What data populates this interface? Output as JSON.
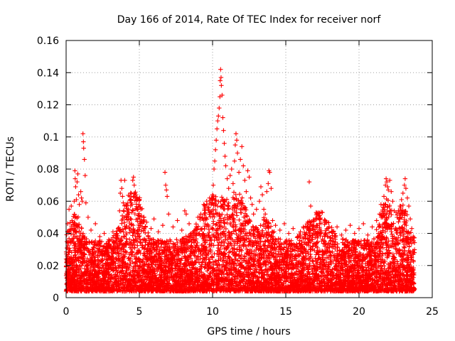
{
  "chart_data": {
    "type": "scatter",
    "title": "Day 166 of 2014, Rate Of TEC Index for receiver norf",
    "xlabel": "GPS time / hours",
    "ylabel": "ROTI / TECUs",
    "xlim": [
      0,
      25
    ],
    "ylim": [
      0,
      0.16
    ],
    "x_ticks": [
      0,
      5,
      10,
      15,
      20,
      25
    ],
    "x_tick_labels": [
      "0",
      "5",
      "10",
      "15",
      "20",
      "25"
    ],
    "y_ticks": [
      0,
      0.02,
      0.04,
      0.06,
      0.08,
      0.1,
      0.12,
      0.14,
      0.16
    ],
    "y_tick_labels": [
      "0",
      "0.02",
      "0.04",
      "0.06",
      "0.08",
      "0.1",
      "0.12",
      "0.14",
      "0.16"
    ],
    "grid": true,
    "marker": "plus",
    "series_color": "#ff0000",
    "series": [
      {
        "name": "",
        "points": [
          [
            0.05,
            0.012
          ],
          [
            0.1,
            0.046
          ],
          [
            0.15,
            0.03
          ],
          [
            0.2,
            0.055
          ],
          [
            0.3,
            0.035
          ],
          [
            0.35,
            0.057
          ],
          [
            0.4,
            0.048
          ],
          [
            0.5,
            0.025
          ],
          [
            0.55,
            0.06
          ],
          [
            0.6,
            0.079
          ],
          [
            0.62,
            0.074
          ],
          [
            0.65,
            0.069
          ],
          [
            0.7,
            0.061
          ],
          [
            0.75,
            0.072
          ],
          [
            0.8,
            0.077
          ],
          [
            0.85,
            0.064
          ],
          [
            0.9,
            0.058
          ],
          [
            1.0,
            0.066
          ],
          [
            1.05,
            0.062
          ],
          [
            1.1,
            0.06
          ],
          [
            1.15,
            0.102
          ],
          [
            1.18,
            0.097
          ],
          [
            1.2,
            0.093
          ],
          [
            1.25,
            0.086
          ],
          [
            1.3,
            0.076
          ],
          [
            1.35,
            0.059
          ],
          [
            1.5,
            0.05
          ],
          [
            1.7,
            0.042
          ],
          [
            2.0,
            0.046
          ],
          [
            2.3,
            0.038
          ],
          [
            2.6,
            0.04
          ],
          [
            2.9,
            0.035
          ],
          [
            3.2,
            0.041
          ],
          [
            3.5,
            0.037
          ],
          [
            3.65,
            0.054
          ],
          [
            3.7,
            0.065
          ],
          [
            3.75,
            0.073
          ],
          [
            3.8,
            0.068
          ],
          [
            3.85,
            0.063
          ],
          [
            3.9,
            0.059
          ],
          [
            4.0,
            0.073
          ],
          [
            4.1,
            0.057
          ],
          [
            4.2,
            0.052
          ],
          [
            4.35,
            0.063
          ],
          [
            4.4,
            0.061
          ],
          [
            4.5,
            0.058
          ],
          [
            4.55,
            0.073
          ],
          [
            4.6,
            0.075
          ],
          [
            4.65,
            0.07
          ],
          [
            4.7,
            0.065
          ],
          [
            4.8,
            0.062
          ],
          [
            4.85,
            0.055
          ],
          [
            5.0,
            0.061
          ],
          [
            5.1,
            0.055
          ],
          [
            5.3,
            0.05
          ],
          [
            5.5,
            0.047
          ],
          [
            5.8,
            0.043
          ],
          [
            6.0,
            0.049
          ],
          [
            6.3,
            0.041
          ],
          [
            6.6,
            0.045
          ],
          [
            6.75,
            0.078
          ],
          [
            6.8,
            0.07
          ],
          [
            6.85,
            0.067
          ],
          [
            6.9,
            0.063
          ],
          [
            7.0,
            0.052
          ],
          [
            7.3,
            0.044
          ],
          [
            7.6,
            0.048
          ],
          [
            7.9,
            0.042
          ],
          [
            8.1,
            0.054
          ],
          [
            8.2,
            0.052
          ],
          [
            8.4,
            0.046
          ],
          [
            8.7,
            0.041
          ],
          [
            9.0,
            0.05
          ],
          [
            9.2,
            0.052
          ],
          [
            9.4,
            0.058
          ],
          [
            9.5,
            0.056
          ],
          [
            9.6,
            0.06
          ],
          [
            9.7,
            0.055
          ],
          [
            9.8,
            0.062
          ],
          [
            9.9,
            0.058
          ],
          [
            10.0,
            0.064
          ],
          [
            10.05,
            0.07
          ],
          [
            10.1,
            0.08
          ],
          [
            10.15,
            0.085
          ],
          [
            10.2,
            0.092
          ],
          [
            10.25,
            0.098
          ],
          [
            10.3,
            0.105
          ],
          [
            10.35,
            0.11
          ],
          [
            10.4,
            0.113
          ],
          [
            10.45,
            0.118
          ],
          [
            10.5,
            0.125
          ],
          [
            10.52,
            0.135
          ],
          [
            10.55,
            0.142
          ],
          [
            10.58,
            0.137
          ],
          [
            10.6,
            0.132
          ],
          [
            10.65,
            0.126
          ],
          [
            10.7,
            0.112
          ],
          [
            10.75,
            0.104
          ],
          [
            10.8,
            0.096
          ],
          [
            10.85,
            0.088
          ],
          [
            10.9,
            0.082
          ],
          [
            11.0,
            0.074
          ],
          [
            11.1,
            0.068
          ],
          [
            11.2,
            0.076
          ],
          [
            11.3,
            0.08
          ],
          [
            11.4,
            0.071
          ],
          [
            11.5,
            0.085
          ],
          [
            11.55,
            0.095
          ],
          [
            11.6,
            0.102
          ],
          [
            11.65,
            0.098
          ],
          [
            11.7,
            0.09
          ],
          [
            11.8,
            0.078
          ],
          [
            11.9,
            0.086
          ],
          [
            12.0,
            0.094
          ],
          [
            12.1,
            0.082
          ],
          [
            12.2,
            0.073
          ],
          [
            12.3,
            0.066
          ],
          [
            12.4,
            0.079
          ],
          [
            12.5,
            0.075
          ],
          [
            12.6,
            0.062
          ],
          [
            12.7,
            0.058
          ],
          [
            12.8,
            0.052
          ],
          [
            13.0,
            0.055
          ],
          [
            13.2,
            0.06
          ],
          [
            13.3,
            0.069
          ],
          [
            13.4,
            0.064
          ],
          [
            13.5,
            0.055
          ],
          [
            13.6,
            0.052
          ],
          [
            13.7,
            0.066
          ],
          [
            13.8,
            0.071
          ],
          [
            13.85,
            0.079
          ],
          [
            13.9,
            0.078
          ],
          [
            14.0,
            0.068
          ],
          [
            14.1,
            0.048
          ],
          [
            14.3,
            0.045
          ],
          [
            14.6,
            0.042
          ],
          [
            14.9,
            0.046
          ],
          [
            15.2,
            0.04
          ],
          [
            15.5,
            0.043
          ],
          [
            15.8,
            0.038
          ],
          [
            16.0,
            0.041
          ],
          [
            16.2,
            0.044
          ],
          [
            16.5,
            0.047
          ],
          [
            16.6,
            0.072
          ],
          [
            16.7,
            0.057
          ],
          [
            16.9,
            0.045
          ],
          [
            17.1,
            0.049
          ],
          [
            17.3,
            0.046
          ],
          [
            17.5,
            0.053
          ],
          [
            17.7,
            0.048
          ],
          [
            17.9,
            0.043
          ],
          [
            18.2,
            0.041
          ],
          [
            18.5,
            0.044
          ],
          [
            18.8,
            0.039
          ],
          [
            19.1,
            0.042
          ],
          [
            19.4,
            0.045
          ],
          [
            19.7,
            0.04
          ],
          [
            20.0,
            0.043
          ],
          [
            20.3,
            0.046
          ],
          [
            20.6,
            0.039
          ],
          [
            20.9,
            0.044
          ],
          [
            21.2,
            0.048
          ],
          [
            21.4,
            0.052
          ],
          [
            21.5,
            0.058
          ],
          [
            21.6,
            0.05
          ],
          [
            21.7,
            0.063
          ],
          [
            21.8,
            0.07
          ],
          [
            21.85,
            0.074
          ],
          [
            21.9,
            0.072
          ],
          [
            21.95,
            0.069
          ],
          [
            22.0,
            0.067
          ],
          [
            22.1,
            0.073
          ],
          [
            22.2,
            0.066
          ],
          [
            22.3,
            0.06
          ],
          [
            22.4,
            0.054
          ],
          [
            22.6,
            0.05
          ],
          [
            22.8,
            0.057
          ],
          [
            22.9,
            0.061
          ],
          [
            23.0,
            0.065
          ],
          [
            23.1,
            0.07
          ],
          [
            23.15,
            0.074
          ],
          [
            23.2,
            0.068
          ],
          [
            23.3,
            0.062
          ],
          [
            23.4,
            0.057
          ],
          [
            23.5,
            0.049
          ],
          [
            23.6,
            0.043
          ],
          [
            23.7,
            0.038
          ],
          [
            0.15,
            0.008
          ],
          [
            0.45,
            0.013
          ],
          [
            0.75,
            0.011
          ],
          [
            1.05,
            0.016
          ],
          [
            1.35,
            0.009
          ],
          [
            1.65,
            0.014
          ],
          [
            1.95,
            0.01
          ],
          [
            2.25,
            0.015
          ],
          [
            2.55,
            0.012
          ],
          [
            2.85,
            0.008
          ],
          [
            3.15,
            0.013
          ],
          [
            3.45,
            0.017
          ],
          [
            3.75,
            0.011
          ],
          [
            4.05,
            0.014
          ],
          [
            4.35,
            0.009
          ],
          [
            4.65,
            0.016
          ],
          [
            4.95,
            0.012
          ],
          [
            5.25,
            0.01
          ],
          [
            5.55,
            0.015
          ],
          [
            5.85,
            0.013
          ],
          [
            6.15,
            0.009
          ],
          [
            6.45,
            0.014
          ],
          [
            6.75,
            0.011
          ],
          [
            7.05,
            0.016
          ],
          [
            7.35,
            0.012
          ],
          [
            7.65,
            0.009
          ],
          [
            7.95,
            0.013
          ],
          [
            8.25,
            0.015
          ],
          [
            8.55,
            0.01
          ],
          [
            8.85,
            0.012
          ],
          [
            9.15,
            0.016
          ],
          [
            9.45,
            0.011
          ],
          [
            9.75,
            0.014
          ],
          [
            10.05,
            0.018
          ],
          [
            10.35,
            0.013
          ],
          [
            10.65,
            0.016
          ],
          [
            10.95,
            0.012
          ],
          [
            11.25,
            0.015
          ],
          [
            11.55,
            0.01
          ],
          [
            11.85,
            0.014
          ],
          [
            12.15,
            0.011
          ],
          [
            12.45,
            0.016
          ],
          [
            12.75,
            0.009
          ],
          [
            13.05,
            0.013
          ],
          [
            13.35,
            0.015
          ],
          [
            13.65,
            0.01
          ],
          [
            13.95,
            0.012
          ],
          [
            14.25,
            0.014
          ],
          [
            14.55,
            0.009
          ],
          [
            14.85,
            0.013
          ],
          [
            15.15,
            0.011
          ],
          [
            15.45,
            0.015
          ],
          [
            15.75,
            0.01
          ],
          [
            16.05,
            0.012
          ],
          [
            16.35,
            0.014
          ],
          [
            16.65,
            0.009
          ],
          [
            16.95,
            0.013
          ],
          [
            17.25,
            0.011
          ],
          [
            17.55,
            0.015
          ],
          [
            17.85,
            0.008
          ],
          [
            18.15,
            0.012
          ],
          [
            18.45,
            0.014
          ],
          [
            18.75,
            0.01
          ],
          [
            19.05,
            0.013
          ],
          [
            19.35,
            0.009
          ],
          [
            19.65,
            0.011
          ],
          [
            19.95,
            0.015
          ],
          [
            20.25,
            0.01
          ],
          [
            20.55,
            0.012
          ],
          [
            20.85,
            0.014
          ],
          [
            21.15,
            0.009
          ],
          [
            21.45,
            0.013
          ],
          [
            21.75,
            0.011
          ],
          [
            22.05,
            0.016
          ],
          [
            22.35,
            0.012
          ],
          [
            22.65,
            0.01
          ],
          [
            22.95,
            0.014
          ],
          [
            23.25,
            0.011
          ],
          [
            23.55,
            0.013
          ],
          [
            23.75,
            0.009
          ]
        ]
      }
    ],
    "dense_band_note_free": true
  }
}
